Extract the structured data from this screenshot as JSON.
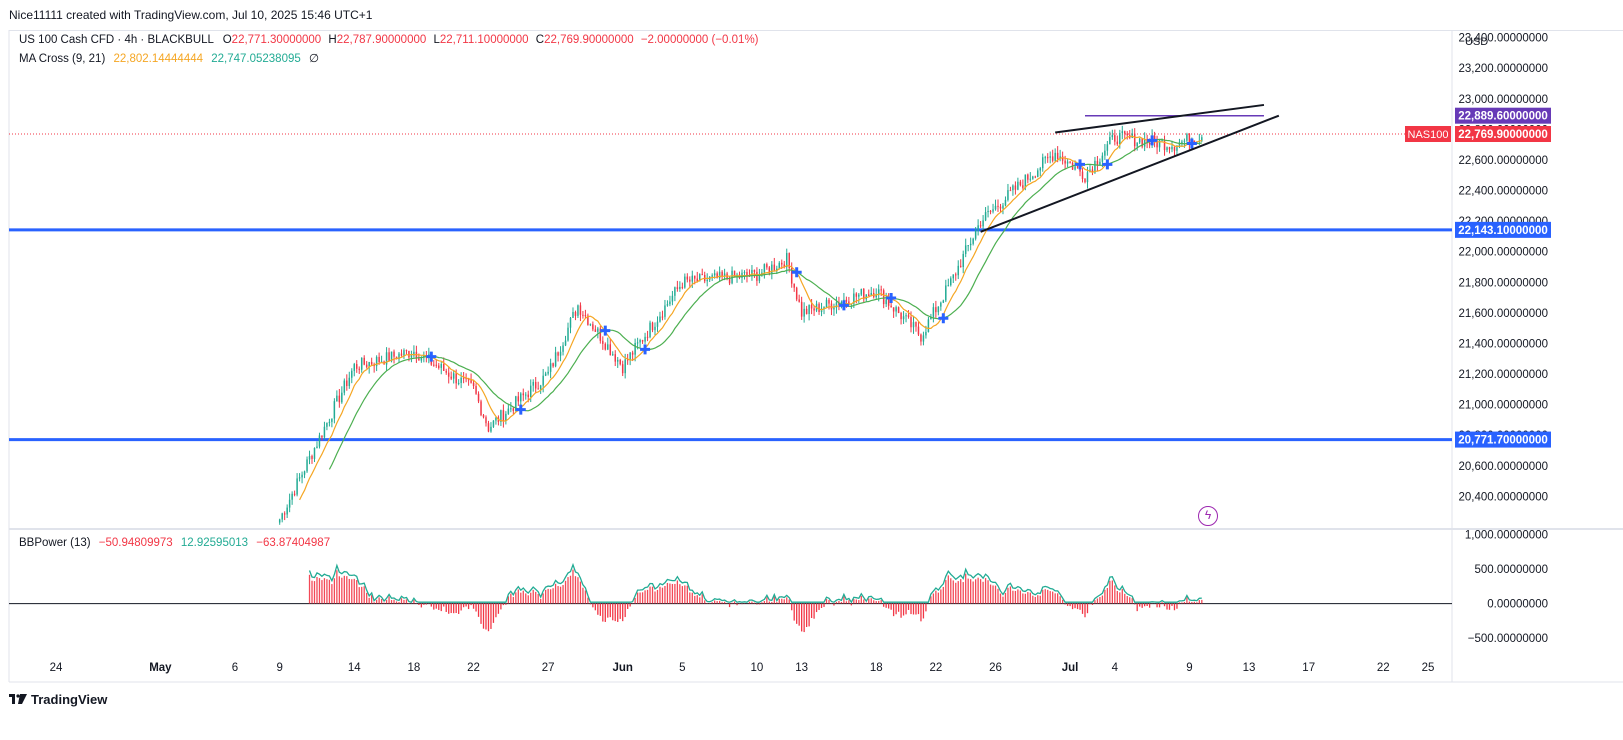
{
  "header": {
    "attribution": "Nice11111 created with TradingView.com, Jul 10, 2025 15:46 UTC+1"
  },
  "legend": {
    "symbol": "US 100 Cash CFD · 4h · BLACKBULL",
    "o_label": "O",
    "o_value": "22,771.30000000",
    "h_label": "H",
    "h_value": "22,787.90000000",
    "l_label": "L",
    "l_value": "22,711.10000000",
    "c_label": "C",
    "c_value": "22,769.90000000",
    "change": "−2.00000000 (−0.01%)",
    "ma_label": "MA Cross (9, 21)",
    "ma_fast": "22,802.14444444",
    "ma_slow": "22,747.05238095",
    "ma_extra": "∅",
    "bb_label": "BBPower (13)",
    "bb_v1": "−50.94809973",
    "bb_v2": "12.92595013",
    "bb_v3": "−63.87404987"
  },
  "price_axis": {
    "currency": "USD",
    "ticks": [
      "23,400.00000000",
      "23,200.00000000",
      "23,000.00000000",
      "22,800.00000000",
      "22,600.00000000",
      "22,400.00000000",
      "22,200.00000000",
      "22,000.00000000",
      "21,800.00000000",
      "21,600.00000000",
      "21,400.00000000",
      "21,200.00000000",
      "21,000.00000000",
      "20,800.00000000",
      "20,600.00000000",
      "20,400.00000000"
    ],
    "badges": [
      {
        "text": "22,889.60000000",
        "color": "#673ab7",
        "price": 22889.6
      },
      {
        "text": "22,769.90000000",
        "color": "#f23645",
        "price": 22769.9
      },
      {
        "text": "22,143.10000000",
        "color": "#2962ff",
        "price": 22143.1
      },
      {
        "text": "20,771.70000000",
        "color": "#2962ff",
        "price": 20771.7
      }
    ],
    "symbol_tag": "NAS100"
  },
  "indicator_axis": {
    "ticks": [
      "1,000.00000000",
      "500.00000000",
      "0.00000000",
      "−500.00000000"
    ]
  },
  "time_axis": {
    "labels": [
      "24",
      "May",
      "6",
      "9",
      "14",
      "18",
      "22",
      "27",
      "Jun",
      "5",
      "10",
      "13",
      "18",
      "22",
      "26",
      "Jul",
      "4",
      "9",
      "13",
      "17",
      "22",
      "25"
    ]
  },
  "footer": {
    "brand": "TradingView"
  },
  "colors": {
    "up": "#22ab94",
    "down": "#f23645",
    "ma_fast": "#f5a623",
    "ma_slow": "#4caf50",
    "hline": "#2962ff",
    "resistance": "#673ab7",
    "cross": "#2962ff"
  },
  "chart_data": {
    "type": "candlestick",
    "title": "US 100 Cash CFD · 4h · BLACKBULL",
    "ylim": [
      20200,
      23450
    ],
    "horizontal_levels": [
      22143.1,
      20771.7,
      22889.6
    ],
    "last_price": 22769.9,
    "wedge": {
      "upper": [
        [
          "Jun 30",
          22780
        ],
        [
          "Jul 14",
          22960
        ]
      ],
      "lower": [
        [
          "Jun 25",
          22130
        ],
        [
          "Jul 15",
          22890
        ]
      ]
    },
    "anchors": [
      [
        "Apr 29",
        20200
      ],
      [
        "May 9",
        20250
      ],
      [
        "May 12",
        20850
      ],
      [
        "May 14",
        21250
      ],
      [
        "May 18",
        21350
      ],
      [
        "May 22",
        21100
      ],
      [
        "May 23",
        20850
      ],
      [
        "May 27",
        21200
      ],
      [
        "May 29",
        21650
      ],
      [
        "Jun 1",
        21250
      ],
      [
        "Jun 5",
        21800
      ],
      [
        "Jun 10",
        21850
      ],
      [
        "Jun 12",
        21950
      ],
      [
        "Jun 13",
        21600
      ],
      [
        "Jun 18",
        21750
      ],
      [
        "Jun 21",
        21450
      ],
      [
        "Jun 23",
        21800
      ],
      [
        "Jun 25",
        22200
      ],
      [
        "Jun 30",
        22650
      ],
      [
        "Jul 2",
        22500
      ],
      [
        "Jul 4",
        22750
      ],
      [
        "Jul 8",
        22700
      ],
      [
        "Jul 10",
        22770
      ]
    ],
    "bbpower_range": [
      -700,
      1050
    ]
  }
}
